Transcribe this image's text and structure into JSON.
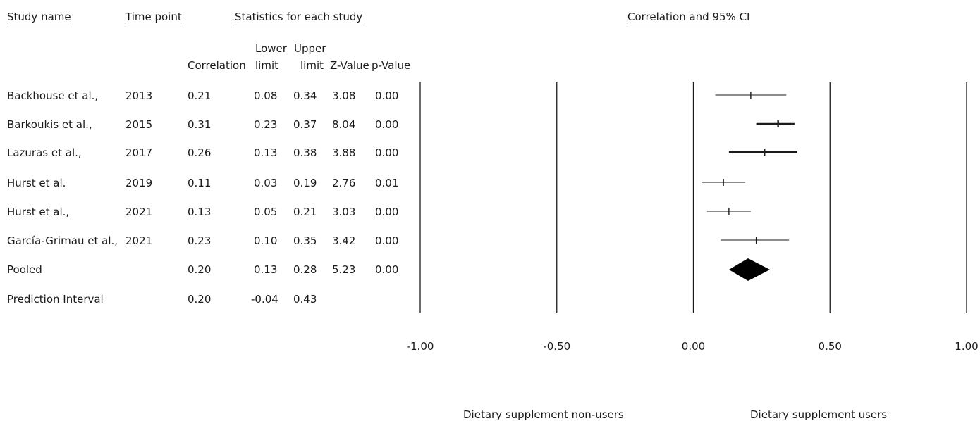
{
  "chart_data": {
    "type": "forest",
    "headers": {
      "study_name": "Study name",
      "time_point": "Time point",
      "statistics": "Statistics for each study",
      "plot_title": "Correlation and 95% CI",
      "correlation": "Correlation",
      "lower_top": "Lower",
      "lower_bottom": "limit",
      "upper_top": "Upper",
      "upper_bottom": "limit",
      "zvalue": "Z-Value",
      "pvalue": "p-Value"
    },
    "studies": [
      {
        "name": "Backhouse et al.,",
        "year": "2013",
        "correlation": 0.21,
        "lower": 0.08,
        "upper": 0.34,
        "z": "3.08",
        "p": "0.00",
        "weight": "light"
      },
      {
        "name": "Barkoukis et al.,",
        "year": "2015",
        "correlation": 0.31,
        "lower": 0.23,
        "upper": 0.37,
        "z": "8.04",
        "p": "0.00",
        "weight": "heavy"
      },
      {
        "name": "Lazuras et al.,",
        "year": "2017",
        "correlation": 0.26,
        "lower": 0.13,
        "upper": 0.38,
        "z": "3.88",
        "p": "0.00",
        "weight": "heavy"
      },
      {
        "name": "Hurst et al.",
        "year": "2019",
        "correlation": 0.11,
        "lower": 0.03,
        "upper": 0.19,
        "z": "2.76",
        "p": "0.01",
        "weight": "light"
      },
      {
        "name": "Hurst et al.,",
        "year": "2021",
        "correlation": 0.13,
        "lower": 0.05,
        "upper": 0.21,
        "z": "3.03",
        "p": "0.00",
        "weight": "light"
      },
      {
        "name": "García-Grimau et al.,",
        "year": "2021",
        "correlation": 0.23,
        "lower": 0.1,
        "upper": 0.35,
        "z": "3.42",
        "p": "0.00",
        "weight": "light"
      }
    ],
    "pooled": {
      "name": "Pooled",
      "correlation": 0.2,
      "lower": 0.13,
      "upper": 0.28,
      "z": "5.23",
      "p": "0.00"
    },
    "prediction_interval": {
      "name": "Prediction Interval",
      "correlation": 0.2,
      "lower": -0.04,
      "upper": 0.43
    },
    "x_axis": {
      "range": [
        -1.0,
        1.0
      ],
      "ticks": [
        -1.0,
        -0.5,
        0.0,
        0.5,
        1.0
      ],
      "tick_labels": [
        "-1.00",
        "-0.50",
        "0.00",
        "0.50",
        "1.00"
      ]
    },
    "favours_left": "Dietary supplement non-users",
    "favours_right": "Dietary supplement users"
  }
}
